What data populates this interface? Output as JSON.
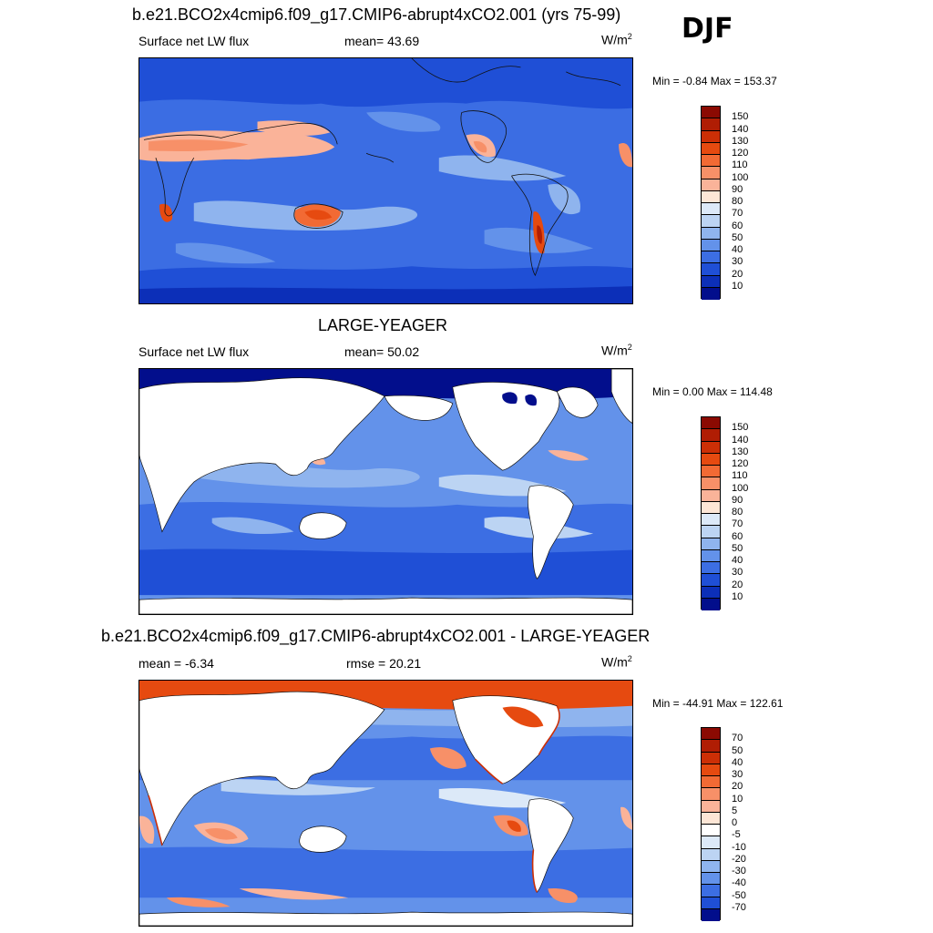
{
  "season": "DJF",
  "panel1": {
    "title": "b.e21.BCO2x4cmip6.f09_g17.CMIP6-abrupt4xCO2.001 (yrs 75-99)",
    "left": "Surface net LW flux",
    "center": "mean=  43.69",
    "units_base": "W/m",
    "units_exp": "2",
    "minmax": "Min =  -0.84 Max = 153.37"
  },
  "panel2": {
    "title": "LARGE-YEAGER",
    "left": "Surface net LW flux",
    "center": "mean=  50.02",
    "units_base": "W/m",
    "units_exp": "2",
    "minmax": "Min =   0.00 Max = 114.48"
  },
  "panel3": {
    "title": "b.e21.BCO2x4cmip6.f09_g17.CMIP6-abrupt4xCO2.001 - LARGE-YEAGER",
    "left": "mean =  -6.34",
    "center": "rmse =  20.21",
    "units_base": "W/m",
    "units_exp": "2",
    "minmax": "Min = -44.91 Max = 122.61"
  },
  "colorbar_abs": {
    "labels": [
      "150",
      "140",
      "130",
      "120",
      "110",
      "100",
      "90",
      "80",
      "70",
      "60",
      "50",
      "40",
      "30",
      "20",
      "10"
    ],
    "colors": [
      "#8b0a02",
      "#b01d04",
      "#cc2f06",
      "#e64a10",
      "#f26a34",
      "#f79068",
      "#fab399",
      "#fde6d6",
      "#dce9f8",
      "#bcd4f3",
      "#8fb4ee",
      "#6392ea",
      "#3c6ee3",
      "#1f4fd6",
      "#0c2fb8",
      "#020e8c"
    ]
  },
  "colorbar_diff": {
    "labels": [
      "70",
      "50",
      "40",
      "30",
      "20",
      "10",
      "5",
      "0",
      "-5",
      "-10",
      "-20",
      "-30",
      "-40",
      "-50",
      "-70"
    ],
    "colors": [
      "#8b0a02",
      "#b01d04",
      "#cc2f06",
      "#e64a10",
      "#f26a34",
      "#f79068",
      "#fab399",
      "#fde6d6",
      "#ffffff",
      "#dce9f8",
      "#bcd4f3",
      "#8fb4ee",
      "#6392ea",
      "#3c6ee3",
      "#1f4fd6",
      "#020e8c"
    ]
  }
}
